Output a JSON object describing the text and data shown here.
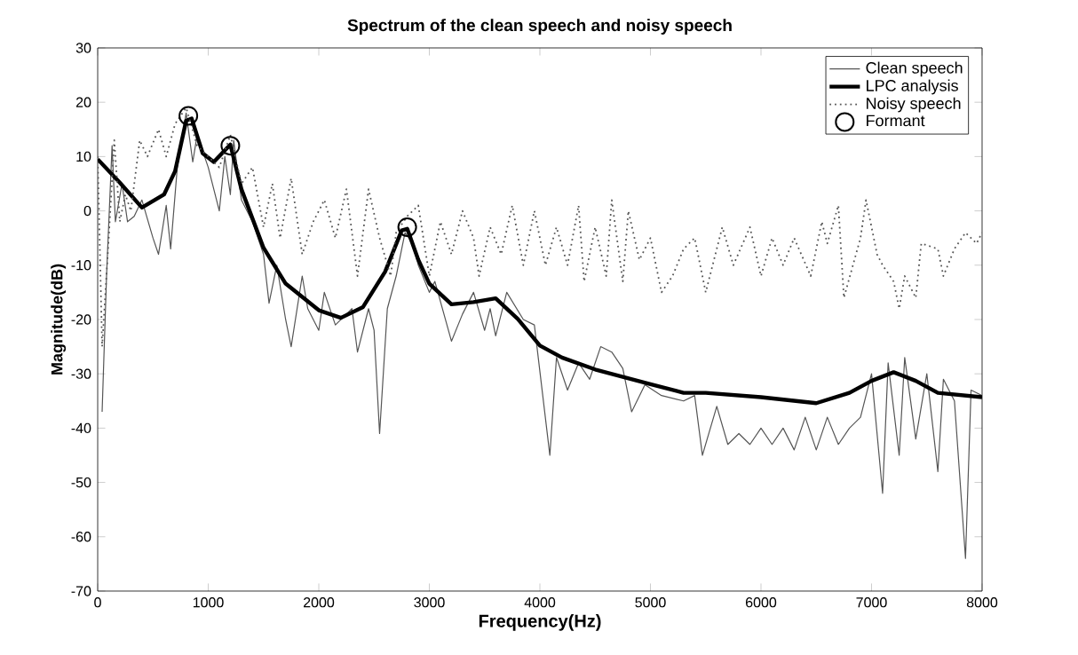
{
  "chart_data": {
    "type": "line",
    "title": "Spectrum of the clean speech and noisy speech",
    "xlabel": "Frequency(Hz)",
    "ylabel": "Magnitude(dB)",
    "xlim": [
      0,
      8000
    ],
    "ylim": [
      -70,
      30
    ],
    "xticks": [
      0,
      1000,
      2000,
      3000,
      4000,
      5000,
      6000,
      7000,
      8000
    ],
    "yticks": [
      -70,
      -60,
      -50,
      -40,
      -30,
      -20,
      -10,
      0,
      10,
      20,
      30
    ],
    "grid": false,
    "legend": "top right",
    "series": [
      {
        "name": "Clean speech",
        "color": "#555555",
        "line_style": "solid",
        "marker": "none",
        "x": [
          40,
          80,
          130,
          160,
          220,
          270,
          330,
          400,
          500,
          550,
          620,
          660,
          720,
          800,
          860,
          900,
          1000,
          1100,
          1150,
          1200,
          1230,
          1300,
          1400,
          1500,
          1550,
          1620,
          1700,
          1750,
          1850,
          1900,
          2000,
          2050,
          2150,
          2300,
          2350,
          2450,
          2500,
          2550,
          2620,
          2700,
          2780,
          2850,
          2900,
          3000,
          3050,
          3200,
          3300,
          3400,
          3500,
          3550,
          3600,
          3700,
          3850,
          3950,
          4090,
          4150,
          4250,
          4350,
          4450,
          4550,
          4650,
          4750,
          4830,
          4950,
          5100,
          5300,
          5400,
          5470,
          5600,
          5700,
          5800,
          5900,
          6000,
          6100,
          6200,
          6300,
          6400,
          6500,
          6600,
          6700,
          6800,
          6900,
          7000,
          7100,
          7150,
          7250,
          7300,
          7400,
          7500,
          7600,
          7650,
          7750,
          7850,
          7900,
          8000
        ],
        "values": [
          -37,
          -12,
          12,
          -2,
          5,
          -2,
          -1,
          2,
          -5,
          -8,
          1,
          -7,
          8,
          18,
          9,
          14,
          8,
          0,
          10,
          3,
          13,
          2,
          -2,
          -8,
          -17,
          -10,
          -20,
          -25,
          -12,
          -18,
          -22,
          -15,
          -21,
          -18,
          -26,
          -18,
          -22,
          -41,
          -18,
          -12,
          -4,
          -6,
          -10,
          -15,
          -13,
          -24,
          -19,
          -15,
          -22,
          -18,
          -23,
          -15,
          -20,
          -21,
          -45,
          -27,
          -33,
          -28,
          -31,
          -25,
          -26,
          -29,
          -37,
          -32,
          -34,
          -35,
          -34,
          -45,
          -36,
          -43,
          -41,
          -43,
          -40,
          -43,
          -40,
          -44,
          -38,
          -44,
          -38,
          -43,
          -40,
          -38,
          -30,
          -52,
          -28,
          -45,
          -27,
          -42,
          -30,
          -48,
          -31,
          -35,
          -64,
          -33,
          -34
        ]
      },
      {
        "name": "LPC analysis",
        "color": "#000000",
        "line_style": "solid",
        "marker": "none",
        "x": [
          0,
          200,
          400,
          600,
          700,
          800,
          850,
          950,
          1050,
          1200,
          1300,
          1500,
          1700,
          2000,
          2200,
          2400,
          2600,
          2750,
          2800,
          2900,
          3000,
          3200,
          3400,
          3600,
          3800,
          4000,
          4200,
          4500,
          5000,
          5300,
          5500,
          6000,
          6500,
          6800,
          7000,
          7200,
          7400,
          7600,
          8000
        ],
        "values": [
          9.5,
          5.2,
          0.6,
          3,
          7.3,
          16.6,
          17,
          10.6,
          9,
          12.2,
          4,
          -6.8,
          -13.4,
          -18.3,
          -19.7,
          -17.7,
          -11.2,
          -3.6,
          -3.3,
          -9,
          -13.4,
          -17.2,
          -16.8,
          -16.1,
          -19.9,
          -24.8,
          -27,
          -29.2,
          -31.9,
          -33.5,
          -33.5,
          -34.3,
          -35.4,
          -33.5,
          -31.3,
          -29.7,
          -31.3,
          -33.5,
          -34.3
        ]
      },
      {
        "name": "Noisy speech",
        "color": "#555555",
        "line_style": "dotted",
        "marker": "none",
        "x": [
          0,
          40,
          100,
          150,
          200,
          250,
          300,
          380,
          450,
          550,
          620,
          700,
          800,
          900,
          1000,
          1100,
          1200,
          1300,
          1400,
          1500,
          1580,
          1650,
          1750,
          1850,
          1950,
          2050,
          2150,
          2250,
          2350,
          2450,
          2550,
          2650,
          2700,
          2800,
          2900,
          3000,
          3100,
          3200,
          3300,
          3400,
          3450,
          3550,
          3650,
          3750,
          3850,
          3950,
          4050,
          4150,
          4250,
          4350,
          4400,
          4500,
          4600,
          4650,
          4750,
          4800,
          4900,
          5000,
          5100,
          5200,
          5300,
          5400,
          5500,
          5650,
          5750,
          5900,
          6000,
          6100,
          6200,
          6300,
          6450,
          6550,
          6600,
          6700,
          6750,
          6900,
          6950,
          7050,
          7100,
          7200,
          7250,
          7300,
          7400,
          7450,
          7600,
          7650,
          7750,
          7850,
          7950,
          8000
        ],
        "values": [
          10,
          -25,
          -5,
          13,
          -2,
          3,
          0,
          13,
          10,
          15,
          10,
          16,
          19,
          12,
          10,
          8,
          14,
          5,
          8,
          -3,
          5,
          -5,
          6,
          -8,
          -2,
          2,
          -5,
          4,
          -12,
          4,
          -5,
          -12,
          -4,
          -1,
          1,
          -12,
          -2,
          -8,
          0,
          -5,
          -12,
          -3,
          -8,
          1,
          -10,
          0,
          -10,
          -3,
          -10,
          1,
          -13,
          -3,
          -12,
          2,
          -13,
          0,
          -9,
          -5,
          -15,
          -12,
          -7,
          -5,
          -15,
          -3,
          -10,
          -3,
          -12,
          -5,
          -10,
          -5,
          -12,
          -2,
          -6,
          1,
          -16,
          -5,
          2,
          -8,
          -10,
          -13,
          -18,
          -12,
          -16,
          -6,
          -7,
          -12,
          -7,
          -4,
          -6,
          -4
        ]
      },
      {
        "name": "Formant",
        "color": "#000000",
        "type": "scatter",
        "marker": "circle",
        "x": [
          820,
          1200,
          2800
        ],
        "values": [
          17.5,
          12,
          -3
        ]
      }
    ]
  }
}
